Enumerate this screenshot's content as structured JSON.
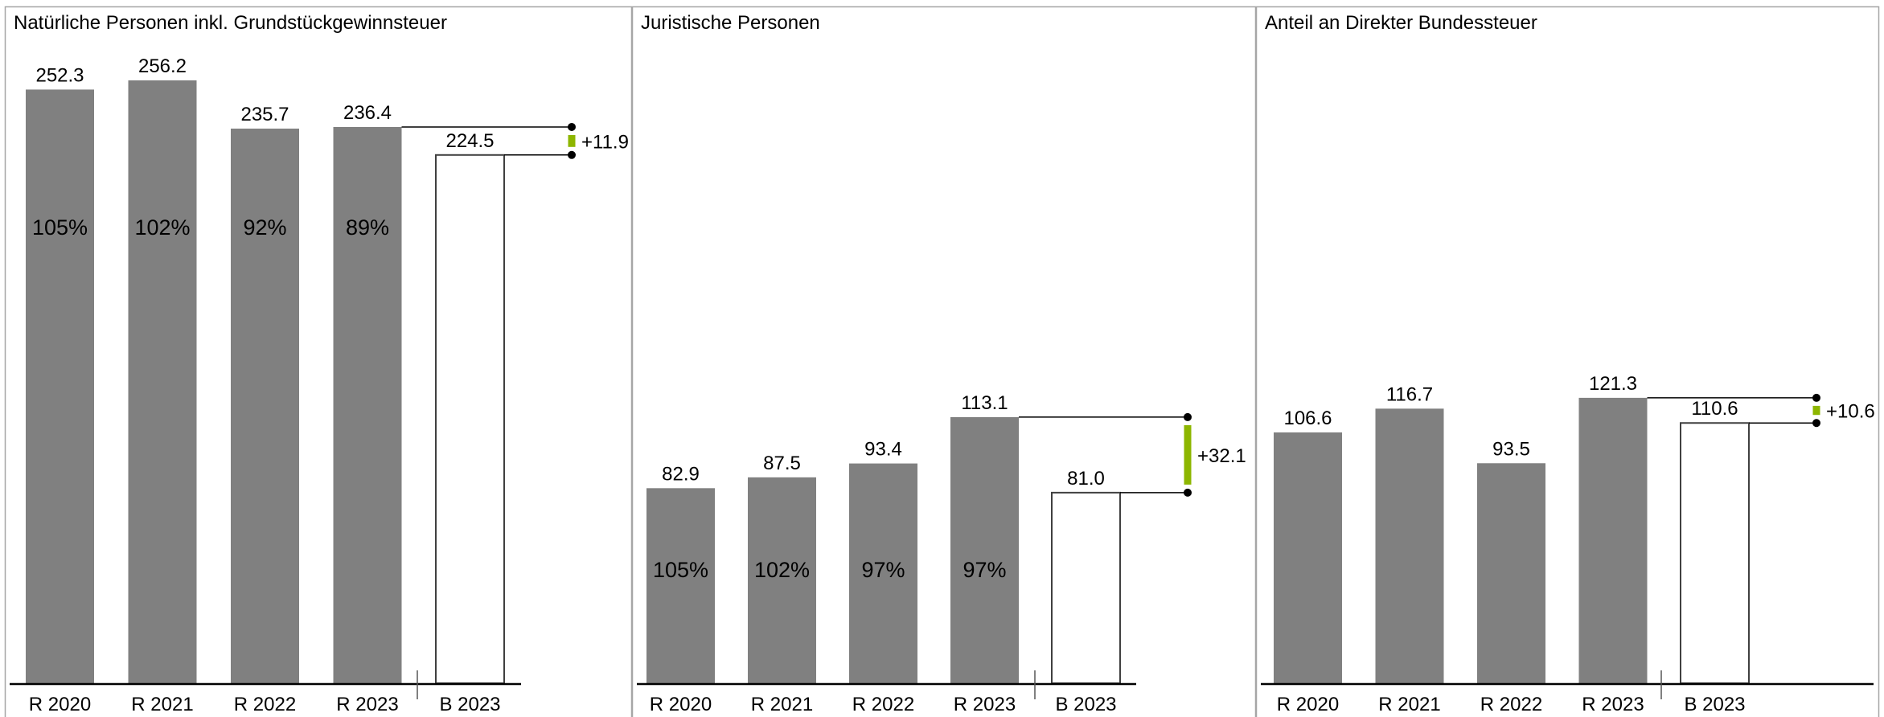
{
  "chart_data": [
    {
      "type": "bar",
      "title": "Natürliche Personen inkl. Grundstückgewinnsteuer",
      "categories": [
        "R 2020",
        "R 2021",
        "R 2022",
        "R 2023",
        "B 2023"
      ],
      "values": [
        252.3,
        256.2,
        235.7,
        236.4,
        224.5
      ],
      "value_labels": [
        "252.3",
        "256.2",
        "235.7",
        "236.4",
        "224.5"
      ],
      "percent_labels": [
        "105%",
        "102%",
        "92%",
        "89%",
        ""
      ],
      "bar_styles": [
        "actual",
        "actual",
        "actual",
        "actual",
        "budget"
      ],
      "variance": {
        "label": "+11.9",
        "value": 11.9,
        "from_category": "B 2023",
        "to_category": "R 2023",
        "color": "#8db600"
      },
      "ylim": [
        0,
        256.2
      ],
      "grid": false,
      "xlabel": "",
      "ylabel": ""
    },
    {
      "type": "bar",
      "title": "Juristische Personen",
      "categories": [
        "R 2020",
        "R 2021",
        "R 2022",
        "R 2023",
        "B 2023"
      ],
      "values": [
        82.9,
        87.5,
        93.4,
        113.1,
        81.0
      ],
      "value_labels": [
        "82.9",
        "87.5",
        "93.4",
        "113.1",
        "81.0"
      ],
      "percent_labels": [
        "105%",
        "102%",
        "97%",
        "97%",
        ""
      ],
      "bar_styles": [
        "actual",
        "actual",
        "actual",
        "actual",
        "budget"
      ],
      "variance": {
        "label": "+32.1",
        "value": 32.1,
        "from_category": "B 2023",
        "to_category": "R 2023",
        "color": "#8db600"
      },
      "ylim": [
        0,
        256.2
      ],
      "grid": false,
      "xlabel": "",
      "ylabel": ""
    },
    {
      "type": "bar",
      "title": "Anteil an Direkter Bundessteuer",
      "categories": [
        "R 2020",
        "R 2021",
        "R 2022",
        "R 2023",
        "B 2023"
      ],
      "values": [
        106.6,
        116.7,
        93.5,
        121.3,
        110.6
      ],
      "value_labels": [
        "106.6",
        "116.7",
        "93.5",
        "121.3",
        "110.6"
      ],
      "percent_labels": [
        "",
        "",
        "",
        "",
        ""
      ],
      "bar_styles": [
        "actual",
        "actual",
        "actual",
        "actual",
        "budget"
      ],
      "variance": {
        "label": "+10.6",
        "value": 10.6,
        "from_category": "B 2023",
        "to_category": "R 2023",
        "color": "#8db600"
      },
      "ylim": [
        0,
        256.2
      ],
      "grid": false,
      "xlabel": "",
      "ylabel": ""
    }
  ],
  "colors": {
    "actual_bar": "#808080",
    "budget_bar_fill": "#ffffff",
    "budget_bar_stroke": "#404040",
    "axis": "#000000",
    "panel_border": "#a6a6a6",
    "variance_positive": "#8db600"
  }
}
